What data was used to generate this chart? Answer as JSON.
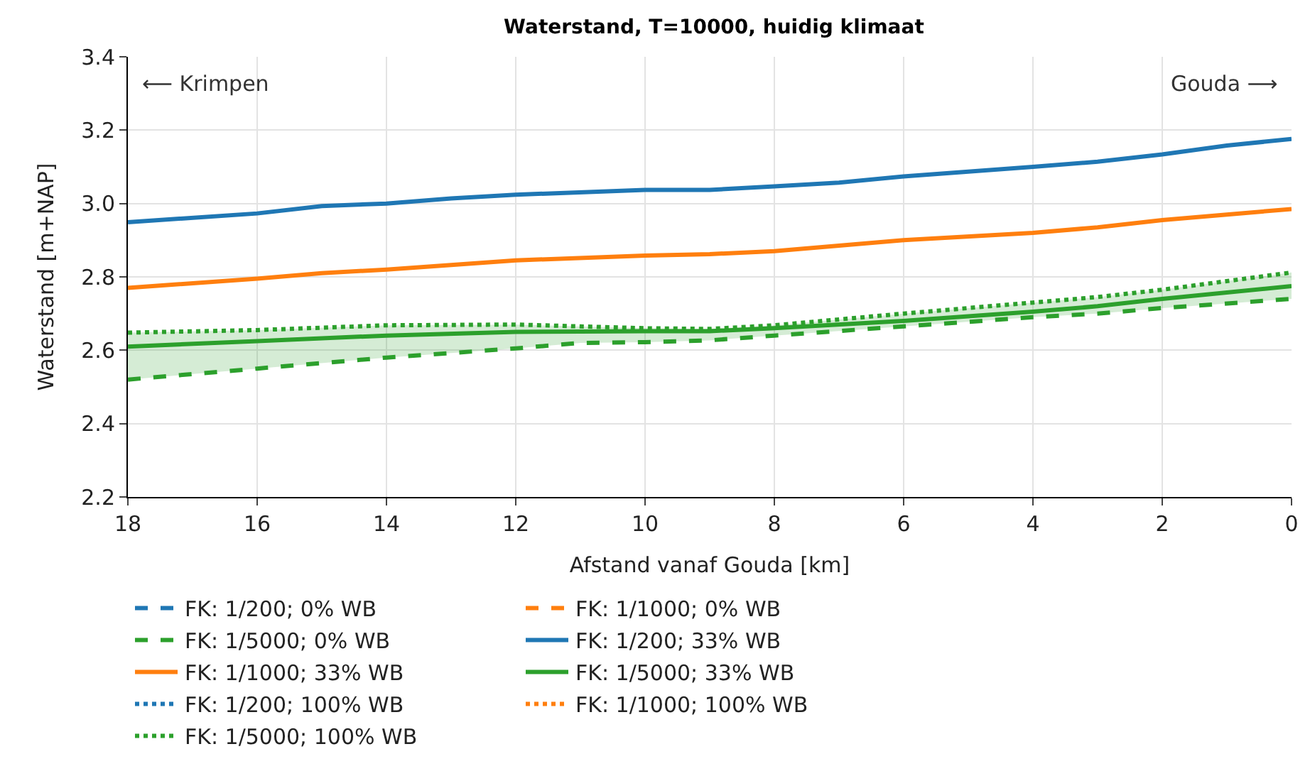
{
  "chart_data": {
    "type": "line",
    "title": "Waterstand, T=10000, huidig klimaat",
    "xlabel": "Afstand vanaf Gouda [km]",
    "ylabel": "Waterstand [m+NAP]",
    "xlim": [
      18,
      0
    ],
    "xticks": [
      18,
      16,
      14,
      12,
      10,
      8,
      6,
      4,
      2,
      0
    ],
    "ylim": [
      2.2,
      3.4
    ],
    "yticks": [
      2.2,
      2.4,
      2.6,
      2.8,
      {
        "value": 3,
        "label": "3.0"
      },
      3.2,
      3.4
    ],
    "grid": true,
    "legend": "bottom",
    "marker": "none",
    "annotations": [
      "⟵ Krimpen",
      "Gouda ⟶"
    ],
    "series": [
      {
        "name": "FK: 1/200; 0% WB",
        "color": "#1f77b4",
        "line_style": "dashed"
      },
      {
        "name": "FK: 1/200; 33% WB",
        "color": "#1f77b4",
        "line_style": "solid",
        "x": [
          18,
          16,
          15,
          14,
          13,
          12,
          10,
          9,
          8,
          7,
          6,
          4,
          3,
          2,
          1,
          0
        ],
        "values": [
          2.949,
          2.973,
          2.993,
          3.0,
          3.014,
          3.024,
          3.037,
          3.037,
          3.047,
          3.057,
          3.074,
          3.1,
          3.114,
          3.134,
          3.158,
          3.176
        ]
      },
      {
        "name": "FK: 1/200; 100% WB",
        "color": "#1f77b4",
        "line_style": "dotted"
      },
      {
        "name": "FK: 1/1000; 0% WB",
        "color": "#ff7f0e",
        "line_style": "dashed"
      },
      {
        "name": "FK: 1/1000; 33% WB",
        "color": "#ff7f0e",
        "line_style": "solid",
        "x": [
          18,
          16,
          15,
          14,
          12,
          10,
          9,
          8,
          7,
          6,
          4,
          3,
          2,
          1,
          0
        ],
        "values": [
          2.77,
          2.795,
          2.81,
          2.82,
          2.845,
          2.858,
          2.862,
          2.87,
          2.885,
          2.9,
          2.92,
          2.935,
          2.955,
          2.97,
          2.985
        ]
      },
      {
        "name": "FK: 1/1000; 100% WB",
        "color": "#ff7f0e",
        "line_style": "dotted"
      },
      {
        "name": "FK: 1/5000; 0% WB",
        "color": "#2ca02c",
        "line_style": "dashed",
        "x": [
          18,
          16,
          14,
          12,
          11,
          10,
          9,
          8,
          6,
          4,
          3,
          2,
          0
        ],
        "values": [
          2.52,
          2.55,
          2.58,
          2.605,
          2.62,
          2.622,
          2.627,
          2.64,
          2.665,
          2.69,
          2.7,
          2.715,
          2.74
        ]
      },
      {
        "name": "FK: 1/5000; 33% WB",
        "color": "#2ca02c",
        "line_style": "solid",
        "x": [
          18,
          16,
          14,
          12,
          11,
          10,
          9,
          8,
          6,
          4,
          3,
          2,
          0
        ],
        "values": [
          2.61,
          2.625,
          2.64,
          2.65,
          2.651,
          2.652,
          2.652,
          2.66,
          2.68,
          2.705,
          2.72,
          2.74,
          2.775
        ],
        "lower": [
          2.52,
          2.55,
          2.58,
          2.605,
          2.62,
          2.622,
          2.627,
          2.64,
          2.665,
          2.69,
          2.7,
          2.715,
          2.74
        ],
        "upper": [
          2.648,
          2.655,
          2.668,
          2.67,
          2.665,
          2.66,
          2.658,
          2.668,
          2.7,
          2.73,
          2.745,
          2.765,
          2.812
        ]
      },
      {
        "name": "FK: 1/5000; 100% WB",
        "color": "#2ca02c",
        "line_style": "dotted",
        "x": [
          18,
          16,
          14,
          12,
          11,
          10,
          9,
          8,
          6,
          4,
          3,
          2,
          0
        ],
        "values": [
          2.648,
          2.655,
          2.668,
          2.67,
          2.665,
          2.66,
          2.658,
          2.668,
          2.7,
          2.73,
          2.745,
          2.765,
          2.812
        ]
      }
    ]
  }
}
